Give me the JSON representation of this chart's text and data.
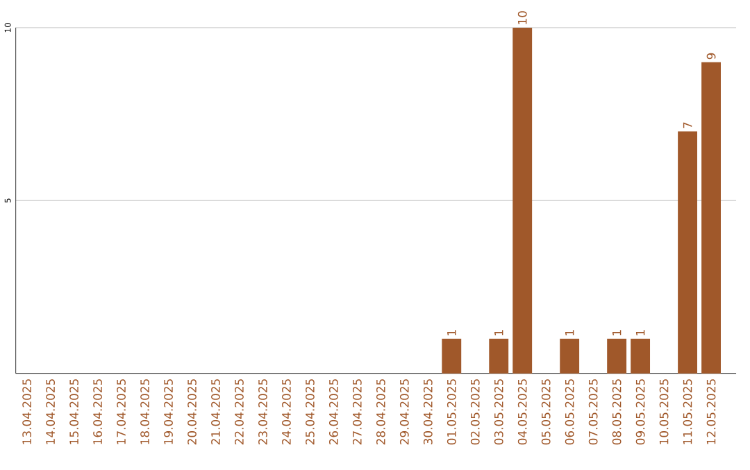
{
  "chart_data": {
    "type": "bar",
    "categories": [
      "13.04.2025",
      "14.04.2025",
      "15.04.2025",
      "16.04.2025",
      "17.04.2025",
      "18.04.2025",
      "19.04.2025",
      "20.04.2025",
      "21.04.2025",
      "22.04.2025",
      "23.04.2025",
      "24.04.2025",
      "25.04.2025",
      "26.04.2025",
      "27.04.2025",
      "28.04.2025",
      "29.04.2025",
      "30.04.2025",
      "01.05.2025",
      "02.05.2025",
      "03.05.2025",
      "04.05.2025",
      "05.05.2025",
      "06.05.2025",
      "07.05.2025",
      "08.05.2025",
      "09.05.2025",
      "10.05.2025",
      "11.05.2025",
      "12.05.2025"
    ],
    "values": [
      0,
      0,
      0,
      0,
      0,
      0,
      0,
      0,
      0,
      0,
      0,
      0,
      0,
      0,
      0,
      0,
      0,
      0,
      1,
      0,
      1,
      10,
      0,
      1,
      0,
      1,
      1,
      0,
      7,
      9
    ],
    "value_labels": [
      null,
      null,
      null,
      null,
      null,
      null,
      null,
      null,
      null,
      null,
      null,
      null,
      null,
      null,
      null,
      null,
      null,
      null,
      "1",
      null,
      "1",
      "10",
      null,
      "1",
      null,
      "1",
      "1",
      null,
      "7",
      "9"
    ],
    "color": "#a0582a",
    "ylim": [
      0,
      10
    ],
    "yticks": [
      5,
      10
    ],
    "grid": "y"
  }
}
